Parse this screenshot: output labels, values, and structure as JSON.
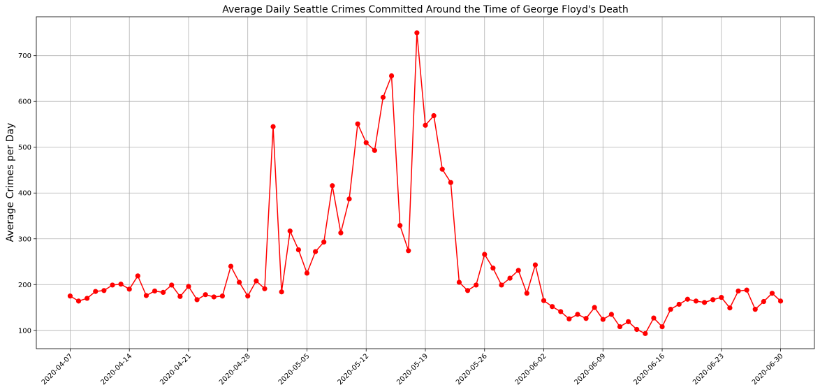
{
  "chart_data": {
    "type": "line",
    "title": "Average Daily Seattle Crimes Committed Around the Time of George Floyd's Death",
    "xlabel": "",
    "ylabel": "Average Crimes per Day",
    "x_start": "2020-04-07",
    "x_end": "2020-06-30",
    "xlim": [
      "2020-04-03",
      "2020-07-04"
    ],
    "ylim": [
      60,
      785
    ],
    "x_ticks": [
      "2020-04-07",
      "2020-04-14",
      "2020-04-21",
      "2020-04-28",
      "2020-05-05",
      "2020-05-12",
      "2020-05-19",
      "2020-05-26",
      "2020-06-02",
      "2020-06-09",
      "2020-06-16",
      "2020-06-23",
      "2020-06-30"
    ],
    "y_ticks": [
      100,
      200,
      300,
      400,
      500,
      600,
      700
    ],
    "grid": true,
    "color": "#ff0000",
    "marker": "circle",
    "values": [
      175,
      164,
      170,
      185,
      187,
      199,
      201,
      190,
      219,
      176,
      186,
      183,
      199,
      174,
      196,
      167,
      178,
      173,
      175,
      240,
      205,
      175,
      208,
      191,
      545,
      184,
      317,
      276,
      225,
      272,
      293,
      416,
      313,
      387,
      551,
      510,
      493,
      609,
      656,
      329,
      274,
      750,
      548,
      569,
      452,
      423,
      205,
      187,
      199,
      266,
      236,
      199,
      214,
      231,
      181,
      243,
      165,
      152,
      141,
      125,
      135,
      126,
      150,
      124,
      135,
      108,
      119,
      102,
      93,
      127,
      108,
      146,
      157,
      168,
      164,
      161,
      167,
      172,
      149,
      186,
      188,
      146,
      163,
      181,
      164
    ]
  }
}
